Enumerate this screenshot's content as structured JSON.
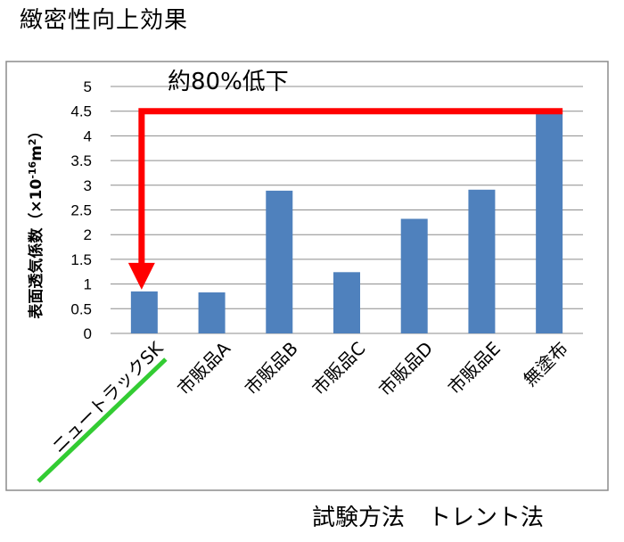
{
  "page": {
    "title": "緻密性向上効果",
    "footer": "試験方法　トレント法"
  },
  "chart_data": {
    "type": "bar",
    "title": "",
    "xlabel": "",
    "ylabel": "表面透気係数（×10",
    "ylabel_sup1": "-16",
    "ylabel_mid": "m",
    "ylabel_sup2": "2",
    "ylabel_end": "）",
    "categories": [
      "ニュートラックSK",
      "市販品A",
      "市販品B",
      "市販品C",
      "市販品D",
      "市販品E",
      "無塗布"
    ],
    "values": [
      0.85,
      0.83,
      2.89,
      1.24,
      2.32,
      2.91,
      4.45
    ],
    "ylim": [
      0,
      5
    ],
    "yticks": [
      "0",
      "0.5",
      "1",
      "1.5",
      "2",
      "2.5",
      "3",
      "3.5",
      "4",
      "4.5",
      "5"
    ],
    "grid": true,
    "annotation": {
      "text": "約80%低下",
      "from_category": "無塗布",
      "to_category": "ニュートラックSK",
      "from_value": 4.5
    },
    "highlight_category": "ニュートラックSK",
    "colors": {
      "bar": "#4f81bd",
      "arrow": "#ff0000",
      "highlight_underline": "#33cc33",
      "grid": "#8c8c8c",
      "frame": "#8c8c8c"
    }
  }
}
